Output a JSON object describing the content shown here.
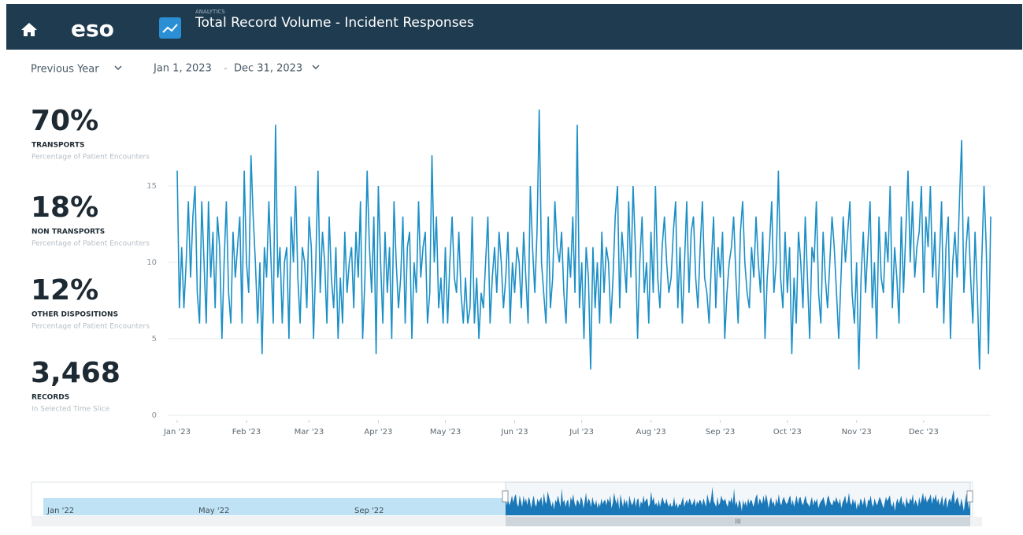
{
  "header": {
    "logo": "eso",
    "section": "ANALYTICS",
    "title": "Total Record Volume - Incident Responses"
  },
  "filters": {
    "period": "Previous Year",
    "start": "Jan 1, 2023",
    "separator": "-",
    "end": "Dec 31, 2023"
  },
  "kpis": [
    {
      "value": "70%",
      "label": "TRANSPORTS",
      "sub": "Percentage of Patient Encounters"
    },
    {
      "value": "18%",
      "label": "NON TRANSPORTS",
      "sub": "Percentage of Patient Encounters"
    },
    {
      "value": "12%",
      "label": "OTHER DISPOSITIONS",
      "sub": "Percentage of Patient Encounters"
    },
    {
      "value": "3,468",
      "label": "RECORDS",
      "sub": "In Selected Time Slice"
    }
  ],
  "chart_data": {
    "type": "line",
    "color": "#1b8fc6",
    "grid": true,
    "ylim": [
      0,
      20
    ],
    "yticks": [
      0,
      5,
      10,
      15
    ],
    "xlim": [
      0,
      364
    ],
    "xticks": [
      {
        "value": 0,
        "label": "Jan '23"
      },
      {
        "value": 31,
        "label": "Feb '23"
      },
      {
        "value": 59,
        "label": "Mar '23"
      },
      {
        "value": 90,
        "label": "Apr '23"
      },
      {
        "value": 120,
        "label": "May '23"
      },
      {
        "value": 151,
        "label": "Jun '23"
      },
      {
        "value": 181,
        "label": "Jul '23"
      },
      {
        "value": 212,
        "label": "Aug '23"
      },
      {
        "value": 243,
        "label": "Sep '23"
      },
      {
        "value": 273,
        "label": "Oct '23"
      },
      {
        "value": 304,
        "label": "Nov '23"
      },
      {
        "value": 334,
        "label": "Dec '23"
      }
    ],
    "values": [
      16,
      7,
      11,
      7,
      10,
      14,
      9,
      13,
      15,
      8,
      6,
      14,
      10,
      6,
      14,
      9,
      12,
      7,
      13,
      11,
      5,
      10,
      14,
      8,
      6,
      12,
      9,
      11,
      13,
      6,
      16,
      10,
      8,
      17,
      13,
      10,
      6,
      10,
      4,
      11,
      9,
      14,
      10,
      6,
      19,
      9,
      11,
      6,
      10,
      11,
      5,
      13,
      10,
      15,
      9,
      6,
      11,
      10,
      7,
      13,
      11,
      5,
      10,
      16,
      8,
      12,
      10,
      6,
      13,
      9,
      7,
      11,
      5,
      9,
      6,
      12,
      8,
      10,
      11,
      7,
      12,
      9,
      14,
      5,
      9,
      16,
      11,
      8,
      13,
      4,
      15,
      10,
      6,
      12,
      8,
      11,
      5,
      14,
      10,
      7,
      9,
      13,
      6,
      11,
      12,
      5,
      10,
      8,
      14,
      9,
      11,
      12,
      6,
      8,
      17,
      10,
      13,
      7,
      9,
      6,
      11,
      6,
      10,
      13,
      9,
      8,
      12,
      8,
      6,
      9,
      6,
      7,
      13,
      6,
      9,
      5,
      8,
      7,
      10,
      13,
      6,
      9,
      11,
      8,
      12,
      10,
      7,
      9,
      12,
      6,
      10,
      8,
      11,
      10,
      7,
      12,
      9,
      6,
      15,
      11,
      8,
      12,
      20,
      10,
      8,
      6,
      13,
      7,
      9,
      14,
      11,
      10,
      12,
      8,
      6,
      11,
      9,
      13,
      8,
      19,
      7,
      10,
      5,
      11,
      9,
      3,
      11,
      7,
      10,
      6,
      12,
      8,
      11,
      10,
      6,
      9,
      13,
      15,
      7,
      12,
      10,
      8,
      14,
      9,
      15,
      11,
      5,
      10,
      13,
      8,
      10,
      6,
      12,
      8,
      15,
      9,
      7,
      11,
      13,
      10,
      8,
      9,
      12,
      14,
      7,
      11,
      6,
      10,
      14,
      8,
      12,
      13,
      9,
      7,
      11,
      14,
      9,
      8,
      6,
      10,
      13,
      7,
      11,
      9,
      12,
      5,
      8,
      10,
      11,
      13,
      9,
      6,
      12,
      14,
      10,
      8,
      7,
      11,
      9,
      13,
      10,
      8,
      12,
      5,
      9,
      11,
      14,
      8,
      10,
      16,
      9,
      7,
      12,
      8,
      11,
      4,
      9,
      6,
      12,
      10,
      7,
      13,
      9,
      5,
      11,
      10,
      14,
      8,
      6,
      12,
      9,
      7,
      10,
      13,
      11,
      8,
      5,
      9,
      13,
      10,
      12,
      14,
      8,
      6,
      10,
      3,
      9,
      12,
      8,
      11,
      14,
      7,
      10,
      5,
      13,
      9,
      8,
      12,
      10,
      15,
      7,
      11,
      9,
      6,
      13,
      8,
      12,
      16,
      10,
      14,
      9,
      11,
      12,
      15,
      8,
      13,
      11,
      15,
      9,
      12,
      7,
      10,
      14,
      6,
      11,
      13,
      5,
      10,
      12,
      9,
      14,
      18,
      8,
      11,
      13,
      9,
      6,
      12,
      8,
      3,
      10,
      15,
      11,
      4,
      13
    ]
  },
  "navigator": {
    "labels": [
      "Jan '22",
      "May '22",
      "Sep '22"
    ],
    "grip": "III"
  }
}
